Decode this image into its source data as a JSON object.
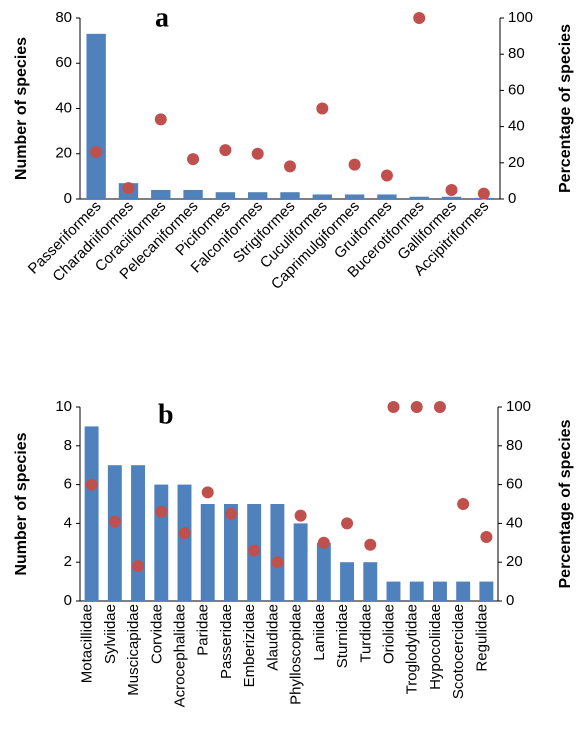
{
  "chart_data": [
    {
      "type": "bar",
      "title": "a",
      "y_label": "Number of species",
      "y2_label": "Percentage of species",
      "categories": [
        "Passeriformes",
        "Charadriiformes",
        "Coraciiformes",
        "Pelecaniformes",
        "Piciformes",
        "Falconiformes",
        "Strigiformes",
        "Cuculiformes",
        "Caprimulgiformes",
        "Gruiformes",
        "Bucerotiformes",
        "Galliformes",
        "Accipitriformes"
      ],
      "series": [
        {
          "type": "bar",
          "color": "#4f81bd",
          "values": [
            73,
            7,
            4,
            4,
            3,
            3,
            3,
            2,
            2,
            2,
            1,
            1,
            0.5
          ]
        },
        {
          "type": "scatter",
          "axis": "y2",
          "color": "#c0504d",
          "values": [
            26,
            6,
            44,
            22,
            27,
            25,
            18,
            50,
            19,
            13,
            100,
            5,
            3
          ]
        }
      ],
      "ylim": [
        0,
        80
      ],
      "yticks": [
        0,
        20,
        40,
        60,
        80
      ],
      "y2lim": [
        0,
        100
      ],
      "y2ticks": [
        0,
        20,
        40,
        60,
        80,
        100
      ],
      "label_rotation": -45
    },
    {
      "type": "bar",
      "title": "b",
      "y_label": "Number of species",
      "y2_label": "Percentage of species",
      "categories": [
        "Motacillidae",
        "Sylviidae",
        "Muscicapidae",
        "Corvidae",
        "Acrocephalidae",
        "Paridae",
        "Passeridae",
        "Emberizidae",
        "Alaudidae",
        "Phylloscopidae",
        "Laniidae",
        "Sturnidae",
        "Turdidae",
        "Oriolidae",
        "Troglodytidae",
        "Hypocoliidae",
        "Scotocercidae",
        "Regulidae"
      ],
      "series": [
        {
          "type": "bar",
          "color": "#4f81bd",
          "values": [
            9,
            7,
            7,
            6,
            6,
            5,
            5,
            5,
            5,
            4,
            3,
            2,
            2,
            1,
            1,
            1,
            1,
            1
          ]
        },
        {
          "type": "scatter",
          "axis": "y2",
          "color": "#c0504d",
          "values": [
            60,
            41,
            18,
            46,
            35,
            56,
            45,
            26,
            20,
            44,
            30,
            40,
            29,
            100,
            100,
            100,
            50,
            33
          ]
        }
      ],
      "ylim": [
        0,
        10
      ],
      "yticks": [
        0,
        2,
        4,
        6,
        8,
        10
      ],
      "y2lim": [
        0,
        100
      ],
      "y2ticks": [
        0,
        20,
        40,
        60,
        80,
        100
      ],
      "label_rotation": -90
    }
  ]
}
